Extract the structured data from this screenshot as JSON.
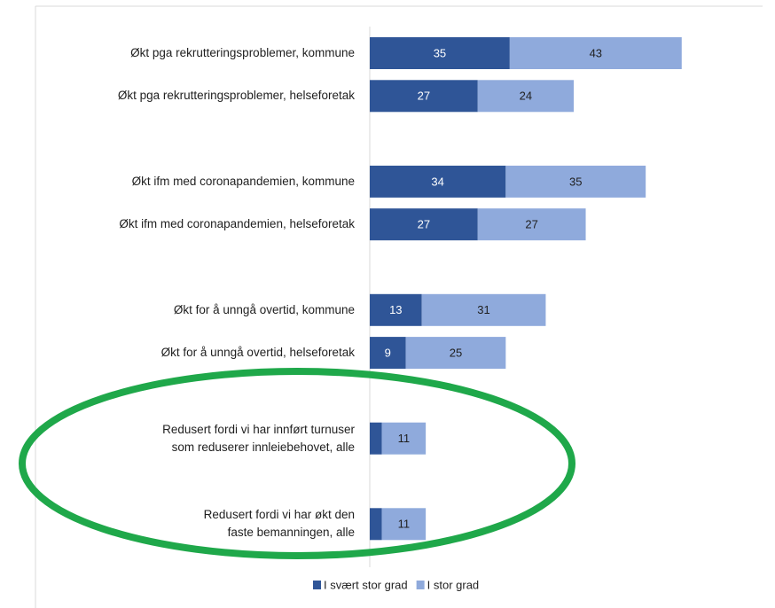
{
  "chart_data": {
    "type": "stacked_bar_horizontal",
    "categories": [
      "Økt pga rekrutteringsproblemer, kommune",
      "Økt pga rekrutteringsproblemer, helseforetak",
      "Økt ifm med coronapandemien, kommune",
      "Økt ifm med coronapandemien, helseforetak",
      "Økt for å unngå overtid, kommune",
      "Økt for å unngå overtid, helseforetak",
      "Redusert fordi vi har innført turnuser\nsom reduserer innleiebehovet, alle",
      "Redusert fordi vi har økt den\nfaste bemanningen, alle"
    ],
    "series": [
      {
        "name": "I svært stor grad",
        "color": "#2f5597",
        "label_color": "#ffffff",
        "values": [
          35,
          27,
          34,
          27,
          13,
          9,
          3,
          3
        ],
        "value_labels": [
          "35",
          "27",
          "34",
          "27",
          "13",
          "9",
          null,
          null
        ]
      },
      {
        "name": "I stor grad",
        "color": "#8faadc",
        "label_color": "#1f1f1f",
        "values": [
          43,
          24,
          35,
          27,
          31,
          25,
          11,
          11
        ],
        "value_labels": [
          "43",
          "24",
          "35",
          "27",
          "31",
          "25",
          "11",
          "11"
        ]
      }
    ],
    "xlim": [
      0,
      100
    ],
    "legend": "bottom"
  }
}
